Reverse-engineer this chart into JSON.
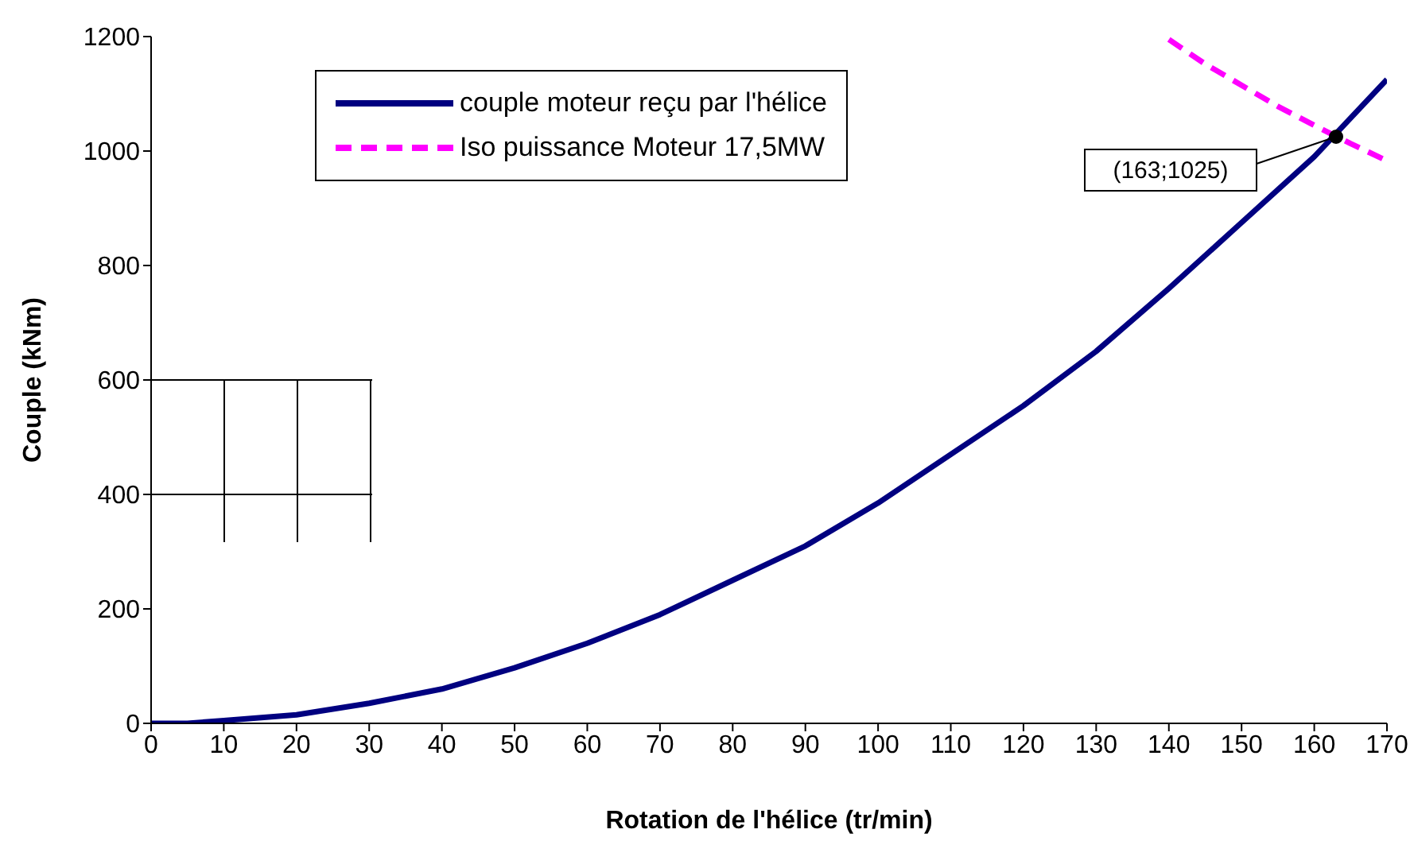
{
  "chart_data": {
    "type": "line",
    "xlabel": "Rotation de l'hélice (tr/min)",
    "ylabel": "Couple (kNm)",
    "xlim": [
      0,
      170
    ],
    "xticks": [
      0,
      10,
      20,
      30,
      40,
      50,
      60,
      70,
      80,
      90,
      100,
      110,
      120,
      130,
      140,
      150,
      160,
      170
    ],
    "ylim": [
      0,
      1200
    ],
    "yticks": [
      0,
      200,
      400,
      600,
      800,
      1000,
      1200
    ],
    "grid": false,
    "legend": "top",
    "marker": "none",
    "series": [
      {
        "name": "couple moteur reçu par l'hélice",
        "color": "#000080",
        "line_style": "solid",
        "x": [
          0,
          5,
          10,
          20,
          30,
          40,
          50,
          60,
          70,
          80,
          90,
          100,
          110,
          120,
          130,
          140,
          150,
          160,
          170
        ],
        "values": [
          0,
          0,
          5,
          15,
          35,
          60,
          97,
          140,
          190,
          250,
          310,
          385,
          470,
          555,
          650,
          760,
          875,
          990,
          1125
        ]
      },
      {
        "name": "Iso puissance Moteur 17,5MW",
        "color": "#ff00ff",
        "line_style": "dashed",
        "x": [
          140,
          145,
          150,
          155,
          160,
          165,
          170
        ],
        "values": [
          1195,
          1152,
          1115,
          1078,
          1045,
          1013,
          983
        ]
      }
    ],
    "annotations": [
      {
        "text": "(163;1025)",
        "x": 163,
        "y": 1025
      }
    ]
  }
}
